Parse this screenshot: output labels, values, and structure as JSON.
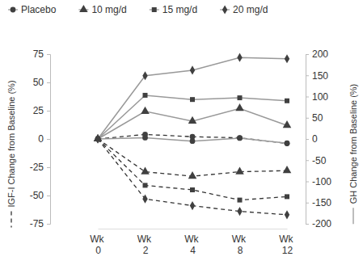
{
  "chart_data": {
    "type": "line",
    "categories": [
      "Wk 0",
      "Wk 2",
      "Wk 4",
      "Wk 8",
      "Wk 12"
    ],
    "y_label": "IGF-I Change from Baseline (%)",
    "y2_label": "GH Change from Baseline (%)",
    "ylim": [
      -75,
      75
    ],
    "yticks": [
      -75,
      -50,
      -25,
      0,
      25,
      50,
      75
    ],
    "y2lim": [
      -200,
      200
    ],
    "y2ticks": [
      -200,
      -150,
      -100,
      -50,
      0,
      50,
      100,
      150,
      200
    ],
    "legend": "top",
    "series": [
      {
        "name": "Placebo",
        "marker": "circle",
        "line_style": "dashed",
        "color": "#333333",
        "values": [
          0,
          4,
          2,
          1,
          -4
        ]
      },
      {
        "name": "10 mg/d",
        "marker": "triangle",
        "line_style": "dashed",
        "color": "#333333",
        "values": [
          0,
          -29,
          -33,
          -29,
          -28
        ]
      },
      {
        "name": "15 mg/d",
        "marker": "square",
        "line_style": "dashed",
        "color": "#333333",
        "values": [
          0,
          -41,
          -45,
          -54,
          -51
        ]
      },
      {
        "name": "20 mg/d",
        "marker": "diamond",
        "line_style": "dashed",
        "color": "#333333",
        "values": [
          0,
          -53,
          -59,
          -64,
          -67
        ]
      },
      {
        "name": "Placebo",
        "marker": "circle",
        "line_style": "solid",
        "color": "#999999",
        "axis": "y2",
        "values": [
          0,
          3,
          -5,
          2,
          -10
        ]
      },
      {
        "name": "10 mg/d",
        "marker": "triangle",
        "line_style": "solid",
        "color": "#999999",
        "axis": "y2",
        "values": [
          0,
          65,
          42,
          72,
          32
        ]
      },
      {
        "name": "15 mg/d",
        "marker": "square",
        "line_style": "solid",
        "color": "#999999",
        "axis": "y2",
        "values": [
          0,
          103,
          93,
          97,
          90
        ]
      },
      {
        "name": "20 mg/d",
        "marker": "diamond",
        "line_style": "solid",
        "color": "#999999",
        "axis": "y2",
        "values": [
          0,
          149,
          162,
          192,
          189
        ]
      }
    ]
  }
}
